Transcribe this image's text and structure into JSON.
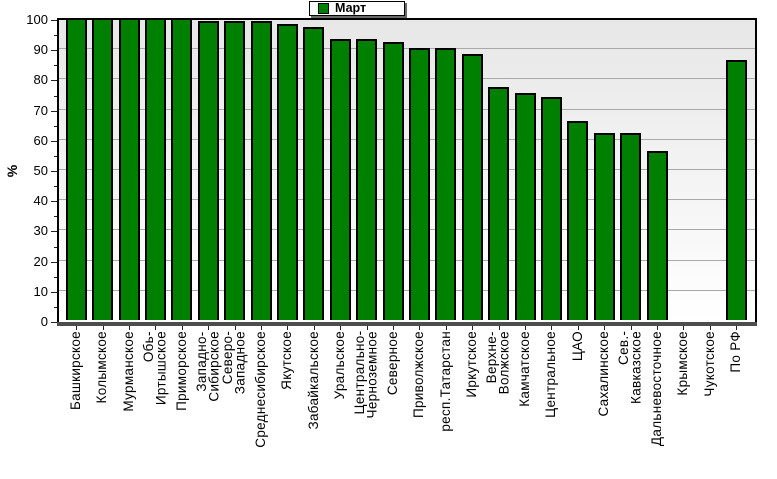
{
  "chart_data": {
    "type": "bar",
    "title": "",
    "xlabel": "",
    "ylabel": "%",
    "ylim": [
      0,
      100
    ],
    "grid": true,
    "legend_position": "top-center",
    "y_ticks": [
      0,
      10,
      20,
      30,
      40,
      50,
      60,
      70,
      80,
      90,
      100
    ],
    "series": [
      {
        "name": "Март",
        "color": "#008000"
      }
    ],
    "categories": [
      "Башкирское",
      "Колымское",
      "Мурманское",
      "Обь-\nИртышское",
      "Приморское",
      "Западно-\nСибирское",
      "Северо-\nЗападное",
      "Среднесибирское",
      "Якутское",
      "Забайкальское",
      "Уральское",
      "Центрально-\nЧерноземное",
      "Северное",
      "Приволжское",
      "респ.Татарстан",
      "Иркутское",
      "Верхне-\nВолжское",
      "Камчатское",
      "Центральное",
      "ЦАО",
      "Сахалинское",
      "Сев.-\nКавказское",
      "Дальневосточное",
      "Крымское",
      "Чукотское",
      "По РФ"
    ],
    "values": [
      100,
      100,
      100,
      100,
      100,
      99,
      99,
      99,
      98,
      97,
      93,
      93,
      92,
      90,
      90,
      88,
      77,
      75,
      74,
      66,
      62,
      62,
      56,
      null,
      null,
      86
    ]
  },
  "colors": {
    "bar_fill": "#008000",
    "bar_border": "#000000",
    "plot_bg_top": "#e7e7e7",
    "plot_bg_bottom": "#ffffff",
    "gridline": "#a9a9a9",
    "baseline": "#4d4d4d",
    "axis_text": "#000000"
  }
}
